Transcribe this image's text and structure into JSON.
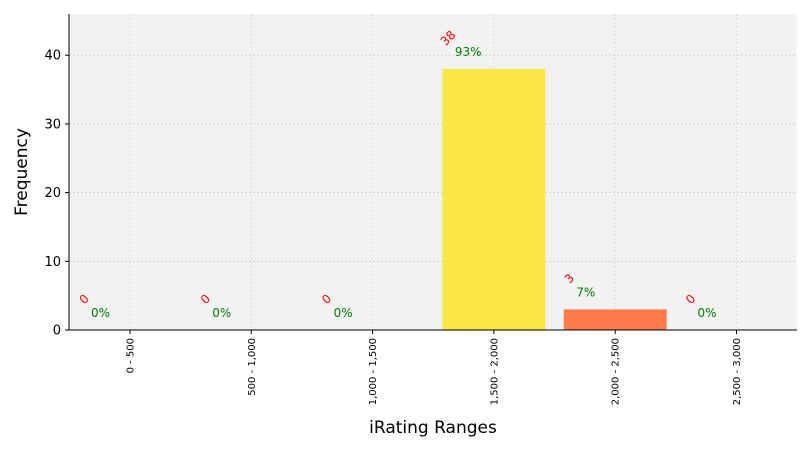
{
  "chart_data": {
    "type": "bar",
    "categories": [
      "0 - 500",
      "500 - 1,000",
      "1,000 - 1,500",
      "1,500 - 2,000",
      "2,000 - 2,500",
      "2,500 - 3,000"
    ],
    "values": [
      0,
      0,
      0,
      38,
      3,
      0
    ],
    "count_labels": [
      "0",
      "0",
      "0",
      "38",
      "3",
      "0"
    ],
    "percent_labels": [
      "0%",
      "0%",
      "0%",
      "93%",
      "7%",
      "0%"
    ],
    "bar_colors": [
      "#9e9e9e",
      "#9e9e9e",
      "#9e9e9e",
      "#fae644",
      "#ff7b47",
      "#9e9e9e"
    ],
    "title": "",
    "xlabel": "iRating Ranges",
    "ylabel": "Frequency",
    "ylim": [
      0,
      46
    ],
    "yticks": [
      0,
      10,
      20,
      30,
      40
    ],
    "grid": true,
    "background": "#f2f2f2",
    "count_label_color": "#ff0000",
    "percent_label_color": "#008000"
  }
}
